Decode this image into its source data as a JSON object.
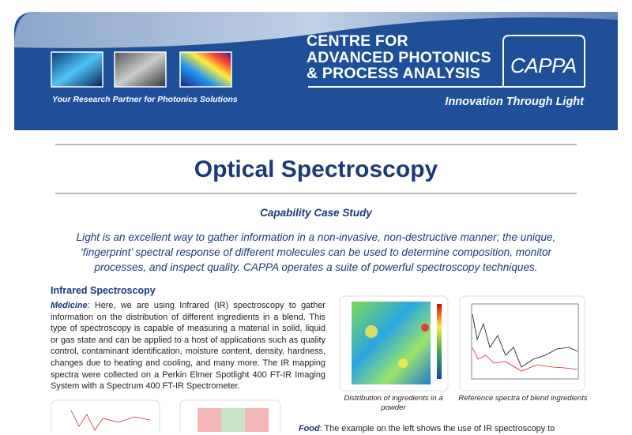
{
  "header": {
    "organization": [
      "CENTRE FOR",
      "ADVANCED PHOTONICS",
      "& PROCESS ANALYSIS"
    ],
    "logo": "CAPPA",
    "tagline": "Your Research Partner for Photonics Solutions",
    "motto": "Innovation Through Light"
  },
  "title": "Optical Spectroscopy",
  "subtitle": "Capability Case Study",
  "intro": "Light is an excellent way to gather information in a non-invasive, non-destructive manner; the unique, ‘fingerprint’ spectral response of different molecules can be used to determine composition, monitor processes, and inspect quality. CAPPA operates a suite of powerful spectroscopy techniques.",
  "section": {
    "heading": "Infrared Spectroscopy",
    "lead": "Medicine",
    "text": ": Here, we are using Infrared (IR) spectroscopy to gather information on the distribution of different ingredients in a blend. This type of spectroscopy is capable of measuring a material in solid, liquid or gas state and can be applied to a host of applications such as quality control, contaminant identification, moisture content, density, hardness, changes due to heating and cooling, and many more. The IR mapping spectra were collected on a Perkin Elmer Spotlight 400 FT-IR Imaging System with a Spectrum 400 FT-IR Spectrometer."
  },
  "figures": [
    {
      "caption": "Distribution of ingredients in a powder"
    },
    {
      "caption": "Reference spectra of blend ingredients"
    }
  ],
  "food": {
    "lead": "Food",
    "text": ": The example on the left shows the use of IR spectroscopy to"
  }
}
